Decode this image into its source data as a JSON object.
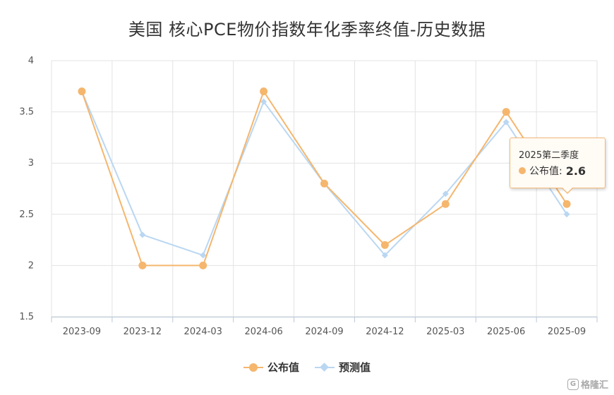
{
  "title": "美国 核心PCE物价指数年化季率终值-历史数据",
  "chart_data": {
    "type": "line",
    "categories": [
      "2023-09",
      "2023-12",
      "2024-03",
      "2024-06",
      "2024-09",
      "2024-12",
      "2025-03",
      "2025-06",
      "2025-09"
    ],
    "series": [
      {
        "name": "公布值",
        "color": "#f5b66e",
        "marker": "circle",
        "values": [
          3.7,
          2.0,
          2.0,
          3.7,
          2.8,
          2.2,
          2.6,
          3.5,
          2.6
        ]
      },
      {
        "name": "预测值",
        "color": "#bad7f2",
        "marker": "diamond",
        "values": [
          3.7,
          2.3,
          2.1,
          3.6,
          2.8,
          2.1,
          2.7,
          3.4,
          2.5
        ]
      }
    ],
    "ylim": [
      1.5,
      4
    ],
    "yticks": [
      "1.5",
      "2",
      "2.5",
      "3",
      "3.5",
      "4"
    ],
    "grid": true,
    "legend_position": "bottom-center"
  },
  "tooltip": {
    "title": "2025第二季度",
    "series_label": "公布值:",
    "value": "2.6"
  },
  "watermark": {
    "text": "格隆汇",
    "icon": "glh-logo-icon"
  }
}
